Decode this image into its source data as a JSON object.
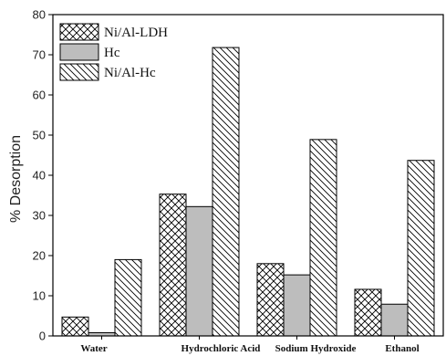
{
  "chart_data": {
    "type": "bar",
    "title": "",
    "xlabel": "",
    "ylabel": "% Desorption",
    "ylim": [
      0,
      80
    ],
    "yticks": [
      0,
      10,
      20,
      30,
      40,
      50,
      60,
      70,
      80
    ],
    "categories": [
      "Water",
      "Hydrochloric Acid",
      "Sodium Hydroxide",
      "Ethanol"
    ],
    "series": [
      {
        "name": "Ni/Al-LDH",
        "pattern": "crosshatch",
        "values": [
          4.7,
          35.3,
          18.0,
          11.6
        ]
      },
      {
        "name": "Hc",
        "pattern": "solid-gray",
        "values": [
          0.8,
          32.2,
          15.2,
          7.9
        ]
      },
      {
        "name": "Ni/Al-Hc",
        "pattern": "diagonal-hatch",
        "values": [
          19.0,
          71.8,
          48.9,
          43.7
        ]
      }
    ],
    "legend": "top-left",
    "grid": false,
    "colors": {
      "axis": "#000000",
      "solid_fill": "#bdbdbd",
      "hatch": "#000000"
    }
  }
}
